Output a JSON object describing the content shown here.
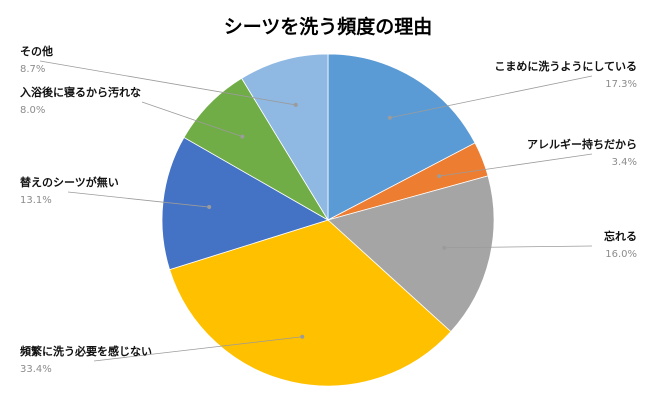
{
  "chart_data": {
    "type": "pie",
    "title": "シーツを洗う頻度の理由",
    "start_angle_deg": 0,
    "direction": "clockwise",
    "slices": [
      {
        "label": "こまめに洗うようにしている",
        "value": 17.3,
        "display": "17.3%",
        "color": "#5B9BD5"
      },
      {
        "label": "アレルギー持ちだから",
        "value": 3.4,
        "display": "3.4%",
        "color": "#ED7D31"
      },
      {
        "label": "忘れる",
        "value": 16.0,
        "display": "16.0%",
        "color": "#A5A5A5"
      },
      {
        "label": "頻繁に洗う必要を感じない",
        "value": 33.4,
        "display": "33.4%",
        "color": "#FFC000"
      },
      {
        "label": "替えのシーツが無い",
        "value": 13.1,
        "display": "13.1%",
        "color": "#4472C4"
      },
      {
        "label": "入浴後に寝るから汚れな",
        "value": 8.0,
        "display": "8.0%",
        "color": "#70AD47"
      },
      {
        "label": "その他",
        "value": 8.7,
        "display": "8.7%",
        "color": "#8FB8E2"
      }
    ]
  }
}
